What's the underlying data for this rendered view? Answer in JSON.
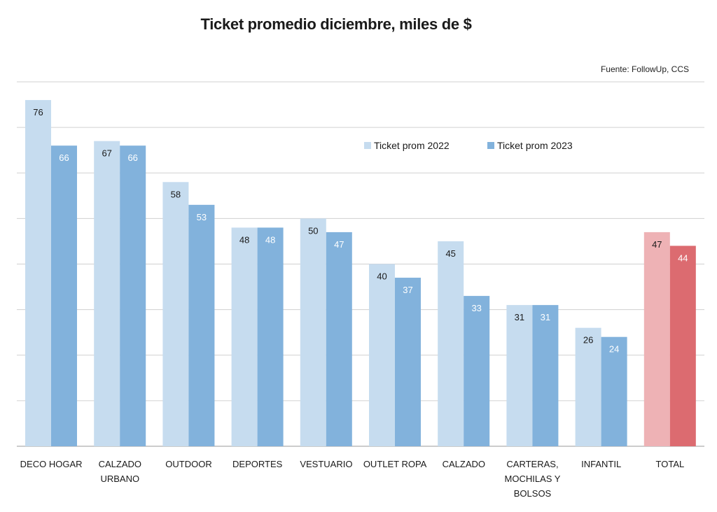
{
  "chart_data": {
    "type": "bar",
    "title": "Ticket promedio diciembre, miles de $",
    "source": "Fuente: FollowUp, CCS",
    "xlabel": "",
    "ylabel": "",
    "ylim": [
      0,
      80
    ],
    "grid": true,
    "legend_position": "top-right",
    "categories": [
      "DECO HOGAR",
      "CALZADO URBANO",
      "OUTDOOR",
      "DEPORTES",
      "VESTUARIO",
      "OUTLET ROPA",
      "CALZADO",
      "CARTERAS, MOCHILAS Y BOLSOS",
      "INFANTIL",
      "TOTAL"
    ],
    "category_lines": [
      [
        "DECO HOGAR"
      ],
      [
        "CALZADO",
        "URBANO"
      ],
      [
        "OUTDOOR"
      ],
      [
        "DEPORTES"
      ],
      [
        "VESTUARIO"
      ],
      [
        "OUTLET ROPA"
      ],
      [
        "CALZADO"
      ],
      [
        "CARTERAS,",
        "MOCHILAS Y",
        "BOLSOS"
      ],
      [
        "INFANTIL"
      ],
      [
        "TOTAL"
      ]
    ],
    "series": [
      {
        "name": "Ticket prom 2022",
        "values": [
          76,
          67,
          58,
          48,
          50,
          40,
          45,
          31,
          26,
          47
        ]
      },
      {
        "name": "Ticket prom 2023",
        "values": [
          66,
          66,
          53,
          48,
          47,
          37,
          33,
          31,
          24,
          44
        ]
      }
    ],
    "colors": {
      "series_2022": "#c6dcef",
      "series_2023": "#82b2dc",
      "total_2022": "#eeb2b5",
      "total_2023": "#dc6b70",
      "grid": "#d0d0d0",
      "axis": "#9a9a9a"
    }
  }
}
